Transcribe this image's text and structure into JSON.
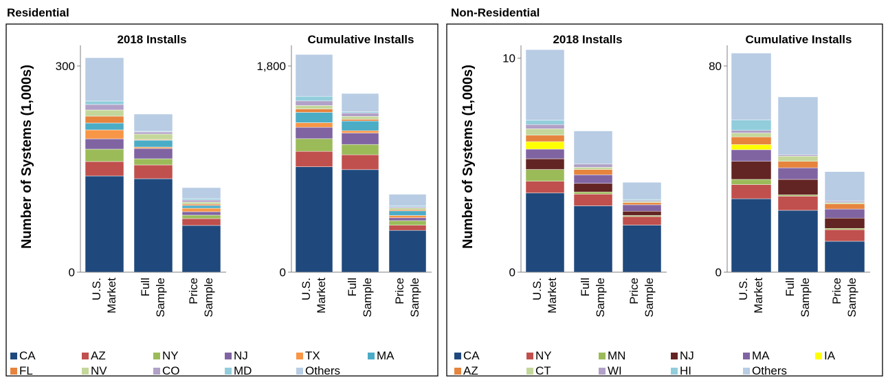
{
  "colors": {
    "CA": "#1f497d",
    "AZ": "#c0504d",
    "NY": "#9bbb59",
    "NJ": "#8064a2",
    "TX": "#f79646",
    "MA": "#4bacc6",
    "FL": "#e6843e",
    "NV": "#c4d79b",
    "CO": "#b1a0c7",
    "MD": "#92cddc",
    "Others": "#b8cce4",
    "NR_CA": "#1f497d",
    "NR_NY": "#c0504d",
    "NR_MN": "#9bbb59",
    "NR_NJ": "#632523",
    "NR_MA": "#8064a2",
    "NR_IA": "#ffff00",
    "NR_AZ": "#e6843e",
    "NR_CT": "#c4d79b",
    "NR_WI": "#b1a0c7",
    "NR_HI": "#92cddc",
    "NR_Others": "#b8cce4"
  },
  "panels": {
    "residential_title": "Residential",
    "nonresidential_title": "Non-Residential",
    "ylabel": "Number of Systems (1,000s)"
  },
  "legends": {
    "residential": [
      {
        "label": "CA",
        "key": "CA"
      },
      {
        "label": "AZ",
        "key": "AZ"
      },
      {
        "label": "NY",
        "key": "NY"
      },
      {
        "label": "NJ",
        "key": "NJ"
      },
      {
        "label": "TX",
        "key": "TX"
      },
      {
        "label": "MA",
        "key": "MA"
      },
      {
        "label": "FL",
        "key": "FL"
      },
      {
        "label": "NV",
        "key": "NV"
      },
      {
        "label": "CO",
        "key": "CO"
      },
      {
        "label": "MD",
        "key": "MD"
      },
      {
        "label": "Others",
        "key": "Others"
      }
    ],
    "nonresidential": [
      {
        "label": "CA",
        "key": "NR_CA"
      },
      {
        "label": "NY",
        "key": "NR_NY"
      },
      {
        "label": "MN",
        "key": "NR_MN"
      },
      {
        "label": "NJ",
        "key": "NR_NJ"
      },
      {
        "label": "MA",
        "key": "NR_MA"
      },
      {
        "label": "IA",
        "key": "NR_IA"
      },
      {
        "label": "AZ",
        "key": "NR_AZ"
      },
      {
        "label": "CT",
        "key": "NR_CT"
      },
      {
        "label": "WI",
        "key": "NR_WI"
      },
      {
        "label": "HI",
        "key": "NR_HI"
      },
      {
        "label": "Others",
        "key": "NR_Others"
      }
    ]
  },
  "chart_data": [
    {
      "type": "bar",
      "stacked": true,
      "title": "2018 Installs",
      "panel": "Residential",
      "categories": [
        "U.S. Market",
        "Full Sample",
        "Price Sample"
      ],
      "ylim": [
        0,
        330
      ],
      "yticks": [
        "0",
        "300"
      ],
      "ytick_values": [
        0,
        300
      ],
      "series": [
        {
          "name": "CA",
          "values": [
            140,
            136,
            68
          ]
        },
        {
          "name": "AZ",
          "values": [
            21,
            20,
            10
          ]
        },
        {
          "name": "NY",
          "values": [
            18,
            9,
            5
          ]
        },
        {
          "name": "NJ",
          "values": [
            15,
            15,
            5
          ]
        },
        {
          "name": "TX",
          "values": [
            13,
            2,
            5
          ]
        },
        {
          "name": "MA",
          "values": [
            10,
            10,
            4
          ]
        },
        {
          "name": "FL",
          "values": [
            10,
            1,
            2
          ]
        },
        {
          "name": "NV",
          "values": [
            9,
            8,
            3
          ]
        },
        {
          "name": "CO",
          "values": [
            8,
            3,
            3
          ]
        },
        {
          "name": "MD",
          "values": [
            5,
            1,
            2
          ]
        },
        {
          "name": "Others",
          "values": [
            63,
            25,
            16
          ]
        }
      ]
    },
    {
      "type": "bar",
      "stacked": true,
      "title": "Cumulative Installs",
      "panel": "Residential",
      "categories": [
        "U.S. Market",
        "Full Sample",
        "Price Sample"
      ],
      "ylim": [
        0,
        1980
      ],
      "yticks": [
        "0",
        "1,800"
      ],
      "ytick_values": [
        0,
        1800
      ],
      "series": [
        {
          "name": "CA",
          "values": [
            920,
            895,
            365
          ]
        },
        {
          "name": "AZ",
          "values": [
            135,
            130,
            45
          ]
        },
        {
          "name": "NY",
          "values": [
            110,
            90,
            40
          ]
        },
        {
          "name": "NJ",
          "values": [
            100,
            100,
            25
          ]
        },
        {
          "name": "TX",
          "values": [
            40,
            20,
            20
          ]
        },
        {
          "name": "MA",
          "values": [
            90,
            85,
            40
          ]
        },
        {
          "name": "FL",
          "values": [
            30,
            15,
            10
          ]
        },
        {
          "name": "NV",
          "values": [
            30,
            25,
            15
          ]
        },
        {
          "name": "CO",
          "values": [
            40,
            30,
            10
          ]
        },
        {
          "name": "MD",
          "values": [
            40,
            10,
            10
          ]
        },
        {
          "name": "Others",
          "values": [
            365,
            160,
            100
          ]
        }
      ]
    },
    {
      "type": "bar",
      "stacked": true,
      "title": "2018 Installs",
      "panel": "Non-Residential",
      "categories": [
        "U.S. Market",
        "Full Sample",
        "Price Sample"
      ],
      "ylim": [
        0,
        10.6
      ],
      "yticks": [
        "0",
        "10"
      ],
      "ytick_values": [
        0,
        10
      ],
      "series": [
        {
          "name": "CA",
          "values": [
            3.7,
            3.1,
            2.2
          ]
        },
        {
          "name": "NY",
          "values": [
            0.55,
            0.55,
            0.4
          ]
        },
        {
          "name": "MN",
          "values": [
            0.55,
            0.1,
            0.05
          ]
        },
        {
          "name": "NJ",
          "values": [
            0.5,
            0.4,
            0.2
          ]
        },
        {
          "name": "MA",
          "values": [
            0.45,
            0.4,
            0.3
          ]
        },
        {
          "name": "IA",
          "values": [
            0.35,
            0.0,
            0.0
          ]
        },
        {
          "name": "AZ",
          "values": [
            0.3,
            0.25,
            0.1
          ]
        },
        {
          "name": "CT",
          "values": [
            0.3,
            0.1,
            0.05
          ]
        },
        {
          "name": "WI",
          "values": [
            0.2,
            0.15,
            0.05
          ]
        },
        {
          "name": "HI",
          "values": [
            0.2,
            0.0,
            0.05
          ]
        },
        {
          "name": "Others",
          "values": [
            3.3,
            1.55,
            0.8
          ]
        }
      ]
    },
    {
      "type": "bar",
      "stacked": true,
      "title": "Cumulative Installs",
      "panel": "Non-Residential",
      "categories": [
        "U.S. Market",
        "Full Sample",
        "Price Sample"
      ],
      "ylim": [
        0,
        88
      ],
      "yticks": [
        "0",
        "80"
      ],
      "ytick_values": [
        0,
        80
      ],
      "series": [
        {
          "name": "CA",
          "values": [
            28.5,
            24,
            12
          ]
        },
        {
          "name": "NY",
          "values": [
            5.5,
            5.5,
            4.5
          ]
        },
        {
          "name": "MN",
          "values": [
            2,
            0.5,
            0.5
          ]
        },
        {
          "name": "NJ",
          "values": [
            7,
            6,
            4
          ]
        },
        {
          "name": "MA",
          "values": [
            4.5,
            4.5,
            3.5
          ]
        },
        {
          "name": "IA",
          "values": [
            2,
            0,
            0
          ]
        },
        {
          "name": "AZ",
          "values": [
            3,
            2.5,
            2
          ]
        },
        {
          "name": "CT",
          "values": [
            1.5,
            2,
            0.5
          ]
        },
        {
          "name": "WI",
          "values": [
            1,
            0.5,
            0.5
          ]
        },
        {
          "name": "HI",
          "values": [
            4,
            0,
            0
          ]
        },
        {
          "name": "Others",
          "values": [
            26,
            22.5,
            11.5
          ]
        }
      ]
    }
  ]
}
